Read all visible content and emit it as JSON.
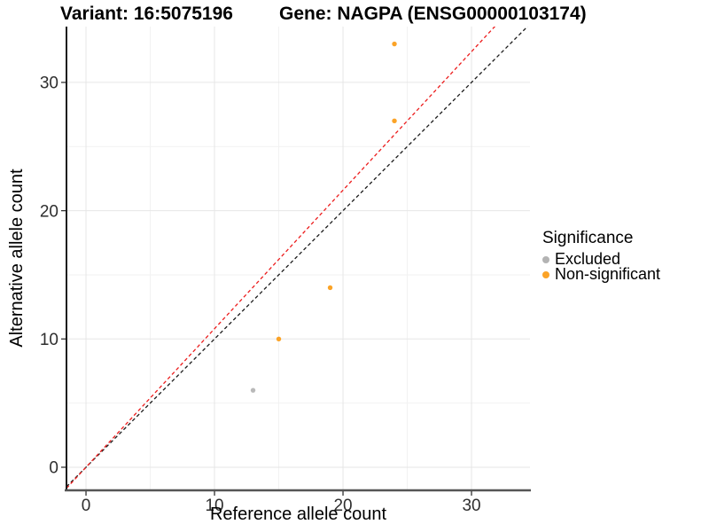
{
  "header": {
    "variant_title": "Variant: 16:5075196",
    "gene_title": "Gene: NAGPA (ENSG00000103174)"
  },
  "legend": {
    "title": "Significance",
    "items": [
      {
        "label": "Excluded",
        "color": "#B3B3B3"
      },
      {
        "label": "Non-significant",
        "color": "#FBA327"
      }
    ]
  },
  "chart_data": {
    "type": "scatter",
    "xlabel": "Reference allele count",
    "ylabel": "Alternative allele count",
    "xlim": [
      -1.52,
      34.55
    ],
    "ylim": [
      -1.73,
      34.35
    ],
    "x_ticks": [
      0,
      10,
      20,
      30
    ],
    "y_ticks": [
      0,
      10,
      20,
      30
    ],
    "minor_ticks": [
      5,
      15,
      25
    ],
    "grid": true,
    "legend_position": "right",
    "points": [
      {
        "x": 13,
        "y": 6,
        "significance": "Excluded",
        "color": "#B9B9B9"
      },
      {
        "x": 15,
        "y": 10,
        "significance": "Non-significant",
        "color": "#FBA327"
      },
      {
        "x": 19,
        "y": 14,
        "significance": "Non-significant",
        "color": "#FBA327"
      },
      {
        "x": 24,
        "y": 27,
        "significance": "Non-significant",
        "color": "#FBA327"
      },
      {
        "x": 24,
        "y": 33,
        "significance": "Non-significant",
        "color": "#FBA327"
      }
    ],
    "lines": [
      {
        "name": "identity-line",
        "slope": 1.0,
        "intercept": 0,
        "color": "#1A1A1A",
        "dash": "4 3"
      },
      {
        "name": "expected-ratio-line",
        "slope": 1.08,
        "intercept": 0,
        "color": "#EC1C1C",
        "dash": "4 3"
      }
    ],
    "style": {
      "grid_major_color": "#E6E6E6",
      "grid_minor_color": "#F2F2F2",
      "axis_line_left_color": "#1A1A1A",
      "axis_line_bottom_color": "#555555",
      "tick_color": "#333333",
      "tick_label_color": "#2E2E2E",
      "point_radius": 2.7
    }
  }
}
